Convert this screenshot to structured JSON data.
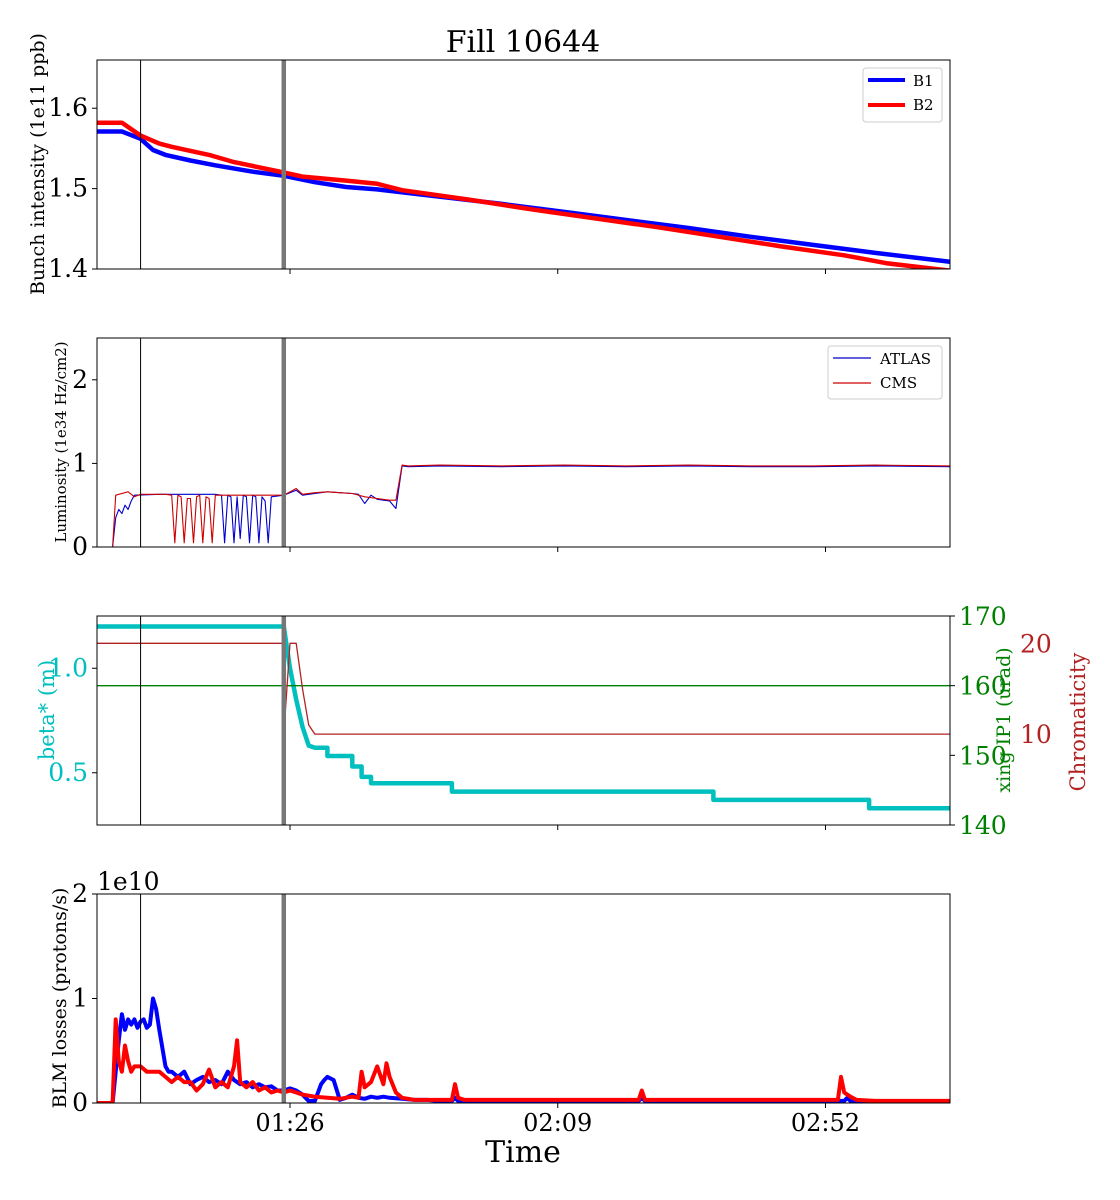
{
  "figure": {
    "title": "Fill 10644",
    "xlabel": "Time",
    "x_ticks": [
      "01:26",
      "02:09",
      "02:52"
    ],
    "x_tick_times": [
      86,
      129,
      172
    ],
    "x_range": [
      55,
      192
    ],
    "markers": {
      "thin_line_time": 62,
      "thick_line_time": 85
    }
  },
  "chart_data": [
    {
      "type": "line",
      "ylabel": "Bunch intensity (1e11 ppb)",
      "ylim": [
        1.4,
        1.66
      ],
      "y_ticks": [
        "1.4",
        "1.5",
        "1.6"
      ],
      "y_tick_values": [
        1.4,
        1.5,
        1.6
      ],
      "legend_position": "top-right",
      "series": [
        {
          "name": "B1",
          "color": "#0000ff",
          "x": [
            55,
            57,
            59,
            62,
            64,
            66,
            70,
            74,
            80,
            85,
            90,
            95,
            100,
            110,
            120,
            130,
            140,
            150,
            160,
            170,
            180,
            192
          ],
          "y": [
            1.571,
            1.571,
            1.571,
            1.562,
            1.548,
            1.542,
            1.535,
            1.529,
            1.521,
            1.516,
            1.508,
            1.502,
            1.499,
            1.49,
            1.481,
            1.471,
            1.461,
            1.451,
            1.44,
            1.43,
            1.42,
            1.409
          ]
        },
        {
          "name": "B2",
          "color": "#ff0000",
          "x": [
            55,
            57,
            59,
            62,
            65,
            67,
            73,
            77,
            85,
            88,
            95,
            100,
            104,
            115,
            125,
            135,
            145,
            155,
            165,
            175,
            182,
            192
          ],
          "y": [
            1.582,
            1.582,
            1.582,
            1.566,
            1.556,
            1.552,
            1.542,
            1.533,
            1.52,
            1.515,
            1.51,
            1.506,
            1.498,
            1.486,
            1.474,
            1.463,
            1.452,
            1.44,
            1.428,
            1.417,
            1.407,
            1.398
          ]
        }
      ]
    },
    {
      "type": "line",
      "ylabel": "Luminosity (1e34 Hz/cm2)",
      "ylim": [
        0,
        2.5
      ],
      "y_ticks": [
        "0",
        "1",
        "2"
      ],
      "y_tick_values": [
        0,
        1,
        2
      ],
      "legend_position": "top-right",
      "series": [
        {
          "name": "ATLAS",
          "color": "#0000cc",
          "x": [
            55,
            57.5,
            58,
            58.5,
            59,
            59.5,
            60,
            60.5,
            61,
            65,
            74,
            75,
            75.5,
            76,
            76.5,
            77,
            77.5,
            78,
            78.5,
            79,
            79.5,
            80,
            80.5,
            81,
            81.5,
            82,
            82.5,
            83,
            85,
            87,
            88,
            90,
            92,
            94,
            96,
            97,
            98,
            99,
            100,
            101,
            102,
            103,
            104,
            105,
            110,
            120,
            130,
            140,
            150,
            160,
            170,
            180,
            192
          ],
          "y": [
            0,
            0,
            0.35,
            0.45,
            0.4,
            0.5,
            0.45,
            0.55,
            0.62,
            0.63,
            0.63,
            0.62,
            0.05,
            0.62,
            0.6,
            0.05,
            0.6,
            0.1,
            0.62,
            0.6,
            0.05,
            0.62,
            0.6,
            0.05,
            0.6,
            0.55,
            0.05,
            0.6,
            0.62,
            0.68,
            0.62,
            0.64,
            0.66,
            0.65,
            0.64,
            0.63,
            0.52,
            0.62,
            0.57,
            0.56,
            0.55,
            0.46,
            0.97,
            0.96,
            0.97,
            0.96,
            0.97,
            0.96,
            0.97,
            0.96,
            0.96,
            0.97,
            0.96
          ]
        },
        {
          "name": "CMS",
          "color": "#cc0000",
          "x": [
            55,
            57.5,
            58,
            60,
            61,
            62,
            66,
            67,
            67.5,
            68,
            68.5,
            69,
            69.5,
            70,
            70.5,
            71,
            71.5,
            72,
            72.5,
            73,
            73.5,
            74,
            80,
            85,
            87,
            88,
            90,
            92,
            94,
            96,
            98,
            100,
            102,
            103,
            104,
            105,
            110,
            120,
            130,
            140,
            150,
            160,
            170,
            180,
            192
          ],
          "y": [
            0,
            0,
            0.62,
            0.66,
            0.6,
            0.63,
            0.63,
            0.62,
            0.05,
            0.62,
            0.6,
            0.05,
            0.58,
            0.58,
            0.05,
            0.6,
            0.62,
            0.05,
            0.6,
            0.58,
            0.05,
            0.62,
            0.62,
            0.62,
            0.7,
            0.63,
            0.65,
            0.66,
            0.65,
            0.64,
            0.6,
            0.58,
            0.56,
            0.56,
            0.98,
            0.97,
            0.98,
            0.97,
            0.98,
            0.97,
            0.98,
            0.97,
            0.97,
            0.98,
            0.97
          ]
        }
      ]
    },
    {
      "type": "line",
      "ylabel": "beta* (m)",
      "ylim": [
        0.25,
        1.25
      ],
      "y_ticks": [
        "0.5",
        "1.0"
      ],
      "y_tick_values": [
        0.5,
        1.0
      ],
      "y2_label": "xing IP1 (urad)",
      "y2lim": [
        140,
        170
      ],
      "y2_ticks": [
        "140",
        "150",
        "160",
        "170"
      ],
      "y2_tick_values": [
        140,
        150,
        160,
        170
      ],
      "y3_label": "Chromaticity",
      "y3lim": [
        0,
        23
      ],
      "y3_ticks": [
        "10",
        "20"
      ],
      "y3_tick_values": [
        10,
        20
      ],
      "series": [
        {
          "axis": "y",
          "color": "#00bfbf",
          "x": [
            55,
            85,
            86,
            87,
            88,
            89,
            90,
            92,
            92,
            96,
            96,
            97.5,
            97.5,
            99,
            99,
            112,
            112,
            154,
            154,
            179,
            179,
            192
          ],
          "y": [
            1.2,
            1.2,
            1.0,
            0.85,
            0.72,
            0.63,
            0.62,
            0.62,
            0.58,
            0.58,
            0.53,
            0.53,
            0.48,
            0.48,
            0.45,
            0.45,
            0.41,
            0.41,
            0.37,
            0.37,
            0.33,
            0.33
          ]
        },
        {
          "axis": "y2",
          "color": "#008000",
          "x": [
            55,
            192
          ],
          "y": [
            160,
            160
          ]
        },
        {
          "axis": "y3",
          "color": "#b22222",
          "x": [
            55,
            85,
            85,
            86,
            86,
            86.5,
            87,
            88,
            89,
            90,
            192
          ],
          "y": [
            20,
            20,
            10,
            20,
            20,
            20,
            20,
            15,
            11,
            10,
            10
          ]
        }
      ]
    },
    {
      "type": "line",
      "ylabel": "BLM losses (protons/s)",
      "y_offset_text": "1e10",
      "ylim": [
        0,
        2
      ],
      "y_ticks": [
        "0",
        "1",
        "2"
      ],
      "y_tick_values": [
        0,
        1,
        2
      ],
      "series": [
        {
          "name": "B1",
          "color": "#0000ff",
          "x": [
            55,
            57.5,
            58,
            58.5,
            59,
            59.5,
            60,
            60.5,
            61,
            61.5,
            62,
            62.5,
            63,
            63.5,
            64,
            64.5,
            65,
            66,
            66.5,
            67,
            68,
            69,
            70,
            71,
            72,
            73,
            74,
            75,
            76,
            77,
            78,
            79,
            80,
            81,
            82,
            83,
            84,
            85,
            86,
            87,
            88,
            88.5,
            89,
            90,
            91,
            91.5,
            92,
            93,
            94,
            95,
            96,
            97,
            98,
            99,
            100,
            101,
            102,
            104,
            106,
            108,
            110,
            112,
            112.5,
            113,
            114,
            120,
            130,
            140,
            142,
            142.5,
            143,
            150,
            160,
            170,
            175,
            175.5,
            176,
            180,
            192
          ],
          "y": [
            0,
            0,
            0.3,
            0.6,
            0.85,
            0.7,
            0.8,
            0.75,
            0.8,
            0.72,
            0.78,
            0.8,
            0.72,
            0.75,
            1.0,
            0.9,
            0.7,
            0.35,
            0.3,
            0.3,
            0.25,
            0.3,
            0.18,
            0.22,
            0.25,
            0.2,
            0.22,
            0.18,
            0.3,
            0.22,
            0.18,
            0.2,
            0.15,
            0.18,
            0.15,
            0.16,
            0.12,
            0.12,
            0.14,
            0.12,
            0.08,
            0.05,
            0.02,
            0.02,
            0.18,
            0.22,
            0.25,
            0.22,
            0.03,
            0.05,
            0.08,
            0.05,
            0.04,
            0.06,
            0.05,
            0.06,
            0.05,
            0.04,
            0.03,
            0.03,
            0.02,
            0.02,
            0.05,
            0.02,
            0.02,
            0.02,
            0.02,
            0.02,
            0.02,
            0.05,
            0.02,
            0.02,
            0.02,
            0.02,
            0.02,
            0.05,
            0.02,
            0.01,
            0.01
          ]
        },
        {
          "name": "B2",
          "color": "#ff0000",
          "x": [
            55,
            57.5,
            58,
            58.5,
            59,
            59.5,
            60,
            60.5,
            61,
            62,
            63,
            64,
            65,
            66,
            67,
            68,
            69,
            70,
            71,
            72,
            73,
            74,
            75,
            76,
            77,
            77.5,
            78,
            79,
            80,
            81,
            82,
            83,
            84,
            85,
            86,
            87,
            88,
            90,
            92,
            94,
            96,
            97,
            97.5,
            98,
            99,
            100,
            101,
            101.5,
            102,
            103,
            104,
            106,
            110,
            112,
            112.5,
            113,
            114,
            120,
            130,
            140,
            142,
            142.5,
            143,
            150,
            160,
            170,
            174,
            174.5,
            175,
            176,
            177,
            180,
            192
          ],
          "y": [
            0,
            0,
            0.8,
            0.4,
            0.3,
            0.55,
            0.4,
            0.3,
            0.35,
            0.35,
            0.3,
            0.3,
            0.3,
            0.25,
            0.2,
            0.25,
            0.2,
            0.2,
            0.12,
            0.18,
            0.32,
            0.15,
            0.2,
            0.15,
            0.35,
            0.6,
            0.2,
            0.15,
            0.2,
            0.12,
            0.15,
            0.1,
            0.12,
            0.1,
            0.12,
            0.1,
            0.08,
            0.06,
            0.05,
            0.04,
            0.06,
            0.05,
            0.3,
            0.15,
            0.2,
            0.35,
            0.18,
            0.38,
            0.25,
            0.1,
            0.05,
            0.03,
            0.03,
            0.03,
            0.18,
            0.05,
            0.03,
            0.03,
            0.03,
            0.03,
            0.03,
            0.12,
            0.03,
            0.03,
            0.03,
            0.03,
            0.03,
            0.25,
            0.1,
            0.06,
            0.03,
            0.02,
            0.02
          ]
        }
      ]
    }
  ]
}
